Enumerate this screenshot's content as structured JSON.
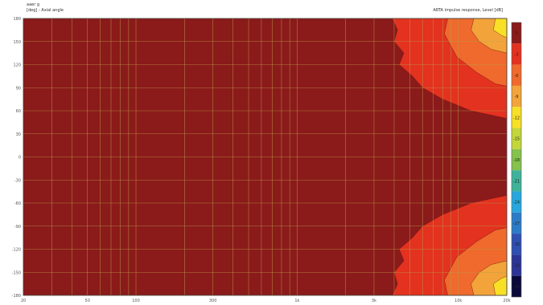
{
  "header": {
    "file_label": "aaer g",
    "ylabel": "[deg] - Axial angle",
    "title": "ARTA impulse response, Level [dB]"
  },
  "chart_data": {
    "type": "heatmap",
    "title": "ARTA impulse response, Level [dB]",
    "ylabel": "[deg] - Axial angle",
    "xlabel": "",
    "x_scale": "log",
    "xlim": [
      20,
      20000
    ],
    "ylim": [
      -180,
      180
    ],
    "y_ticks": [
      180,
      150,
      120,
      90,
      60,
      30,
      0,
      -30,
      -60,
      -90,
      -120,
      -150,
      -180
    ],
    "x_ticks": [
      {
        "value": 20,
        "label": "20"
      },
      {
        "value": 50,
        "label": "50"
      },
      {
        "value": 100,
        "label": "100"
      },
      {
        "value": 300,
        "label": "300"
      },
      {
        "value": 1000,
        "label": "1k"
      },
      {
        "value": 3000,
        "label": "3k"
      },
      {
        "value": 10000,
        "label": "10k"
      },
      {
        "value": 20000,
        "label": "20k"
      }
    ],
    "x_grid": [
      30,
      40,
      50,
      60,
      70,
      80,
      90,
      100,
      200,
      300,
      400,
      500,
      600,
      700,
      800,
      900,
      1000,
      2000,
      3000,
      4000,
      5000,
      6000,
      7000,
      8000,
      9000,
      10000
    ],
    "grid": true,
    "legend": "right",
    "colorbar": [
      {
        "label": "0",
        "color": "#8b1a1a"
      },
      {
        "label": "-3",
        "color": "#e3321f"
      },
      {
        "label": "-6",
        "color": "#ef6a2c"
      },
      {
        "label": "-9",
        "color": "#f2a43a"
      },
      {
        "label": "-12",
        "color": "#f7e025"
      },
      {
        "label": "-15",
        "color": "#c3d63a"
      },
      {
        "label": "-18",
        "color": "#85c24e"
      },
      {
        "label": "-21",
        "color": "#3fb39a"
      },
      {
        "label": "-24",
        "color": "#27a7dd"
      },
      {
        "label": "-27",
        "color": "#2c7bc7"
      },
      {
        "label": "-30",
        "color": "#2f4fb1"
      },
      {
        "label": "-33",
        "color": "#2c3596"
      },
      {
        "label": "-36",
        "color": "#0a0a3a"
      }
    ],
    "regions": [
      {
        "level": -3,
        "color": "#e3321f",
        "upper_edge": [
          [
            3900,
            180
          ],
          [
            4200,
            165
          ],
          [
            4000,
            150
          ],
          [
            4600,
            135
          ],
          [
            4300,
            120
          ],
          [
            5200,
            105
          ],
          [
            6000,
            90
          ],
          [
            8000,
            75
          ],
          [
            12000,
            60
          ],
          [
            20000,
            50
          ]
        ],
        "lower_edge": [
          [
            20000,
            -50
          ],
          [
            12000,
            -60
          ],
          [
            8000,
            -75
          ],
          [
            6000,
            -90
          ],
          [
            5200,
            -105
          ],
          [
            4300,
            -120
          ],
          [
            4600,
            -135
          ],
          [
            4000,
            -150
          ],
          [
            4200,
            -165
          ],
          [
            3900,
            -180
          ]
        ]
      },
      {
        "level": -6,
        "color": "#ef6a2c",
        "upper_edge": [
          [
            8600,
            180
          ],
          [
            8200,
            160
          ],
          [
            9800,
            130
          ],
          [
            13000,
            110
          ],
          [
            17000,
            95
          ],
          [
            20000,
            92
          ]
        ],
        "lower_edge": [
          [
            20000,
            -92
          ],
          [
            17000,
            -95
          ],
          [
            13000,
            -110
          ],
          [
            9800,
            -130
          ],
          [
            8200,
            -160
          ],
          [
            8600,
            -180
          ]
        ]
      },
      {
        "level": -9,
        "color": "#f2a43a",
        "upper_edge": [
          [
            12500,
            180
          ],
          [
            12000,
            165
          ],
          [
            13500,
            150
          ],
          [
            16000,
            140
          ],
          [
            20000,
            135
          ]
        ],
        "lower_edge": [
          [
            20000,
            -135
          ],
          [
            16000,
            -140
          ],
          [
            13500,
            -150
          ],
          [
            12000,
            -165
          ],
          [
            12500,
            -180
          ]
        ]
      },
      {
        "level": -12,
        "color": "#f7e025",
        "upper_edge": [
          [
            17000,
            180
          ],
          [
            16500,
            165
          ],
          [
            18500,
            158
          ],
          [
            20000,
            155
          ]
        ],
        "lower_edge": [
          [
            20000,
            -155
          ],
          [
            18500,
            -158
          ],
          [
            16500,
            -165
          ],
          [
            17000,
            -180
          ]
        ]
      }
    ]
  }
}
